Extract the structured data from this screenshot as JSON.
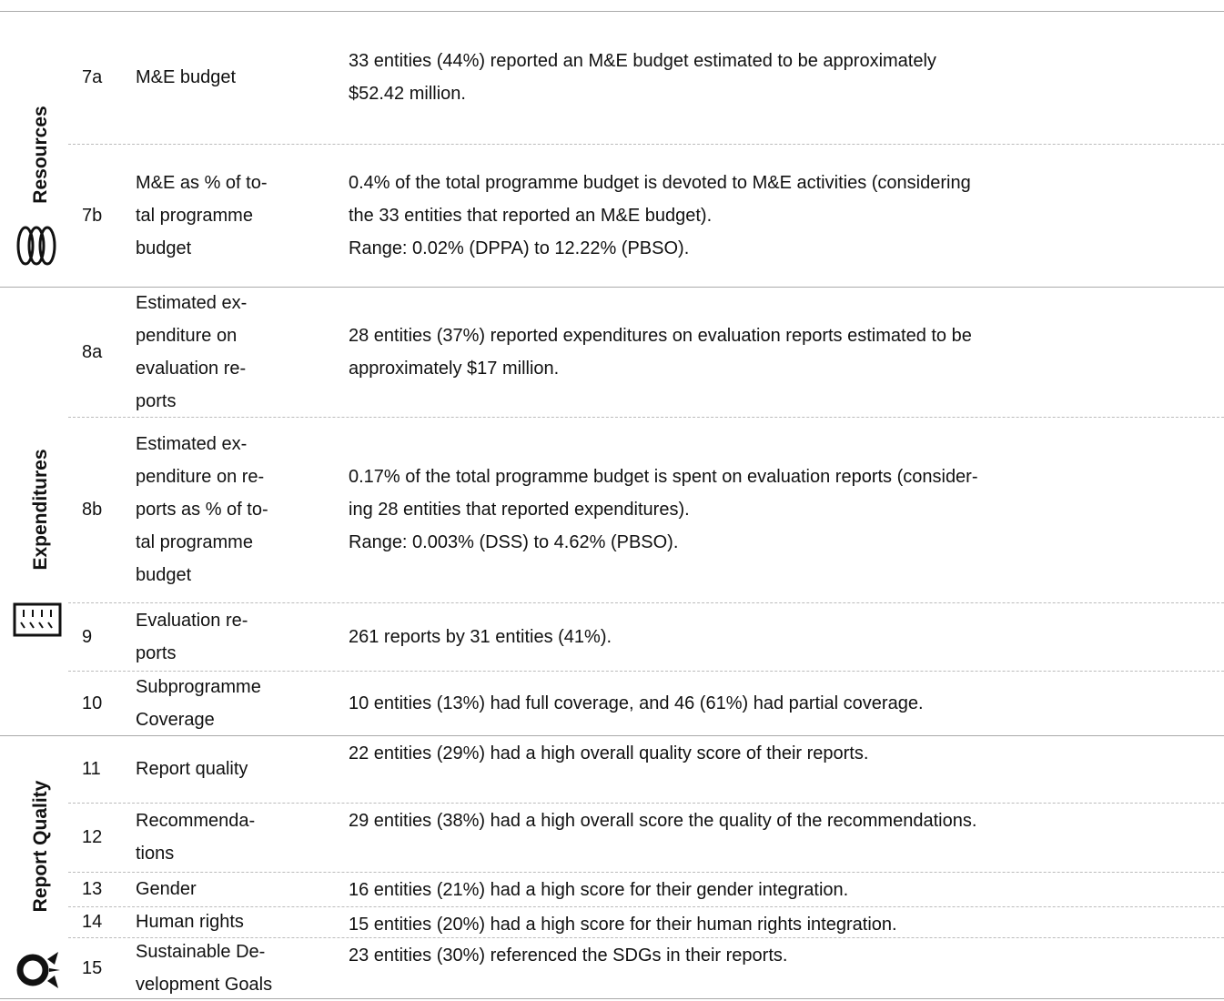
{
  "groups": [
    {
      "label": "Resources",
      "rows": [
        {
          "id": "7a",
          "indicator": "M&E budget",
          "description": "33 entities (44%) reported an M&E budget estimated to be approximately\n$52.42 million."
        },
        {
          "id": "7b",
          "indicator": "M&E as % of to-\ntal programme\nbudget",
          "description": "0.4% of the total programme budget is devoted to M&E activities (considering\nthe 33 entities that reported an M&E budget).\nRange: 0.02% (DPPA) to 12.22% (PBSO)."
        }
      ]
    },
    {
      "label": "Expenditures",
      "rows": [
        {
          "id": "8a",
          "indicator": "Estimated ex-\npenditure on\nevaluation re-\nports",
          "description": "28 entities (37%) reported expenditures on evaluation reports estimated to be\napproximately $17 million."
        },
        {
          "id": "8b",
          "indicator": "Estimated ex-\npenditure on re-\nports as % of to-\ntal programme\nbudget",
          "description": "0.17% of the total programme budget is spent on evaluation reports (consider-\ning 28 entities that reported expenditures).\nRange: 0.003% (DSS) to 4.62% (PBSO)."
        },
        {
          "id": "9",
          "indicator": "Evaluation re-\nports",
          "description": "261 reports by 31 entities (41%)."
        },
        {
          "id": "10",
          "indicator": "Subprogramme\nCoverage",
          "description": "10 entities (13%) had full coverage, and 46 (61%) had partial coverage."
        }
      ]
    },
    {
      "label": "Report Quality",
      "rows": [
        {
          "id": "11",
          "indicator": "Report quality",
          "description": "22 entities (29%) had a high overall quality score of their reports."
        },
        {
          "id": "12",
          "indicator": "Recommenda-\ntions",
          "description": "29 entities (38%) had a high overall score the quality of the recommendations."
        },
        {
          "id": "13",
          "indicator": "Gender",
          "description": "16 entities (21%) had a high score for their gender integration."
        },
        {
          "id": "14",
          "indicator": "Human rights",
          "description": "15 entities (20%) had a high score for their human rights integration."
        },
        {
          "id": "15",
          "indicator": "Sustainable De-\nvelopment Goals",
          "description": "23 entities (30%) referenced the SDGs in their reports."
        }
      ]
    }
  ]
}
